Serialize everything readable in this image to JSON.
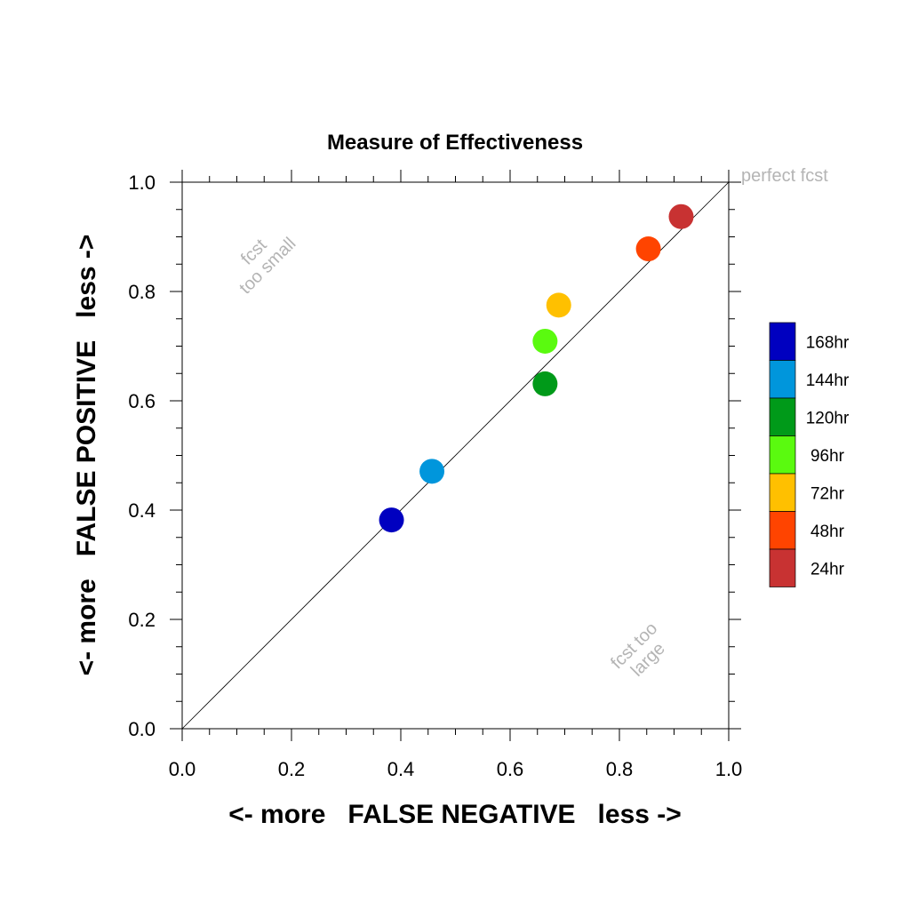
{
  "chart_data": {
    "type": "scatter",
    "title": "Measure of Effectiveness",
    "xlabel": "<- more   FALSE NEGATIVE   less ->",
    "ylabel": "<- more   FALSE POSITIVE   less ->",
    "xlim": [
      0.0,
      1.0
    ],
    "ylim": [
      0.0,
      1.0
    ],
    "x_ticks": [
      "0.0",
      "0.2",
      "0.4",
      "0.6",
      "0.8",
      "1.0"
    ],
    "y_ticks": [
      "0.0",
      "0.2",
      "0.4",
      "0.6",
      "0.8",
      "1.0"
    ],
    "grid": false,
    "diagonal_line": true,
    "annotations": {
      "perfect": "perfect fcst",
      "too_small_line1": "fcst",
      "too_small_line2": "too small",
      "too_large_line1": "fcst too",
      "too_large_line2": "large"
    },
    "legend_position": "right",
    "series": [
      {
        "name": "168hr",
        "color": "#0000c0",
        "x": 0.383,
        "y": 0.382
      },
      {
        "name": "144hr",
        "color": "#0096dc",
        "x": 0.457,
        "y": 0.471
      },
      {
        "name": "120hr",
        "color": "#009a19",
        "x": 0.664,
        "y": 0.631
      },
      {
        "name": "96hr",
        "color": "#5afa0f",
        "x": 0.664,
        "y": 0.709
      },
      {
        "name": "72hr",
        "color": "#ffc000",
        "x": 0.689,
        "y": 0.775
      },
      {
        "name": "48hr",
        "color": "#ff4400",
        "x": 0.853,
        "y": 0.878
      },
      {
        "name": "24hr",
        "color": "#c83232",
        "x": 0.913,
        "y": 0.937
      }
    ]
  }
}
